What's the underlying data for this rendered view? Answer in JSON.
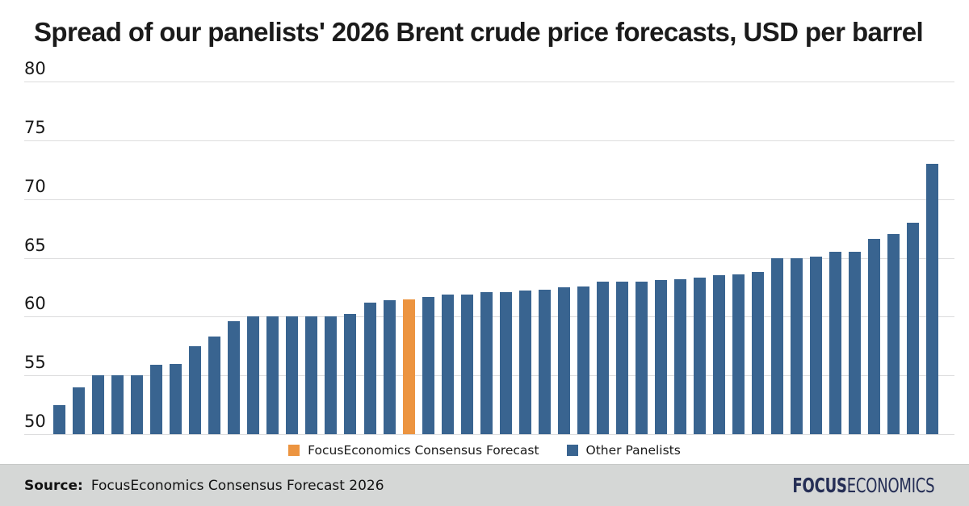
{
  "chart_data": {
    "type": "bar",
    "title": "Spread of our panelists' 2026 Brent crude price forecasts, USD per barrel",
    "xlabel": "",
    "ylabel": "USD per barrel",
    "ylim": [
      50,
      80
    ],
    "y_ticks": [
      50,
      55,
      60,
      65,
      70,
      75,
      80
    ],
    "grid": "horizontal",
    "legend_position": "bottom-center",
    "values": [
      52.5,
      54.0,
      55.0,
      55.0,
      55.0,
      55.9,
      56.0,
      57.5,
      58.3,
      59.6,
      60.0,
      60.0,
      60.0,
      60.0,
      60.0,
      60.2,
      61.2,
      61.4,
      61.5,
      61.7,
      61.9,
      61.9,
      62.1,
      62.1,
      62.2,
      62.3,
      62.5,
      62.6,
      63.0,
      63.0,
      63.0,
      63.1,
      63.2,
      63.3,
      63.5,
      63.6,
      63.8,
      65.0,
      65.0,
      65.1,
      65.5,
      65.5,
      66.6,
      67.0,
      68.0,
      73.0
    ],
    "highlight_index": 18,
    "highlight_value": 61.5,
    "series_meta": [
      {
        "name": "FocusEconomics Consensus Forecast",
        "color": "#EC9440",
        "role": "consensus"
      },
      {
        "name": "Other Panelists",
        "color": "#396490",
        "role": "panelists"
      }
    ]
  },
  "legend": {
    "consensus_label": "FocusEconomics Consensus Forecast",
    "panelists_label": "Other Panelists"
  },
  "footer": {
    "source_label": "Source:",
    "source_text": "FocusEconomics Consensus Forecast 2026",
    "logo_bold": "FOCUS",
    "logo_light": "ECONOMICS"
  },
  "colors": {
    "consensus": "#EC9440",
    "panelists": "#396490",
    "gridline": "#dcdcdd",
    "footer_bg": "#d5d7d6",
    "logo_navy": "#252e55",
    "text": "#1a1a1a"
  }
}
